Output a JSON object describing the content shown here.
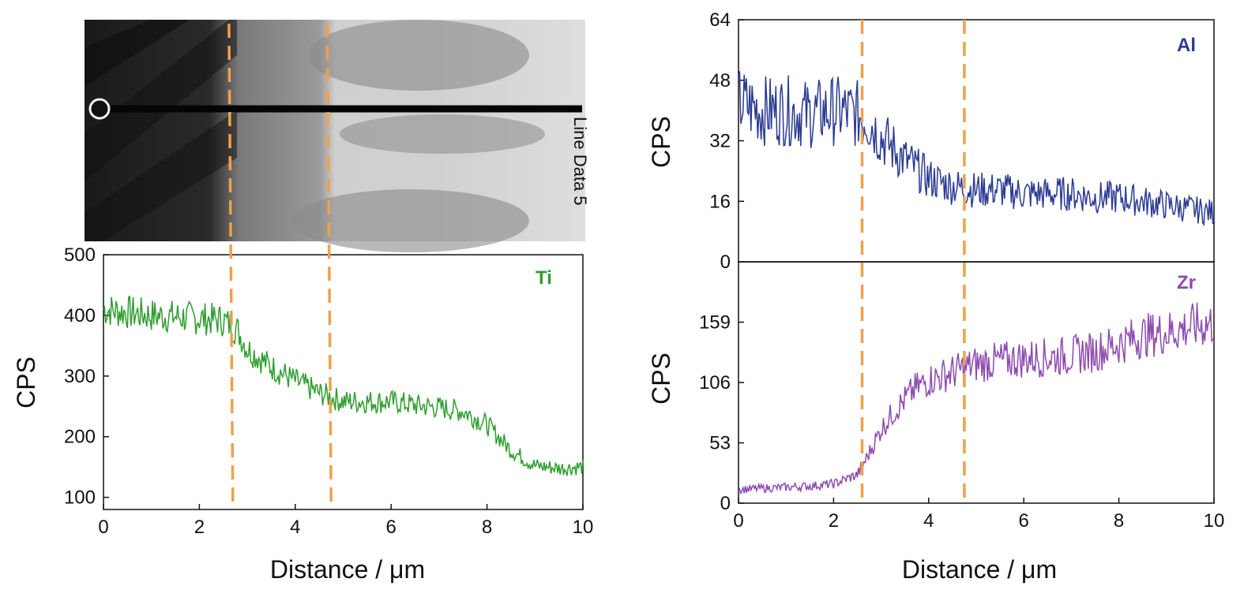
{
  "micrograph": {
    "line_label": "Line Data 5"
  },
  "colors": {
    "Ti": "#2e9e2e",
    "Al": "#2b3b94",
    "Zr": "#8e4bb0",
    "boundary": "#f0a14a"
  },
  "boundaries_um": [
    2.7,
    4.75
  ],
  "boundaries_right_um": [
    2.6,
    4.75
  ],
  "chart_data": [
    {
      "type": "line",
      "panel": "Ti",
      "annotation": "Ti",
      "xlabel": "Distance / μm",
      "ylabel": "CPS",
      "xlim": [
        0,
        10
      ],
      "ylim": [
        80,
        500
      ],
      "xticks": [
        "0",
        "2",
        "4",
        "6",
        "8",
        "10"
      ],
      "yticks": [
        "100",
        "200",
        "300",
        "400",
        "500"
      ],
      "series": [
        {
          "x": [
            0,
            0.5,
            1,
            1.5,
            2,
            2.5,
            2.8,
            3,
            3.5,
            4,
            4.5,
            5,
            5.5,
            6,
            6.5,
            7,
            7.5,
            8,
            8.5,
            9,
            9.5,
            10
          ],
          "y": [
            410,
            405,
            400,
            398,
            395,
            392,
            375,
            345,
            315,
            292,
            272,
            258,
            258,
            258,
            252,
            248,
            242,
            220,
            178,
            152,
            148,
            150
          ]
        }
      ]
    },
    {
      "type": "line",
      "panel": "Al",
      "annotation": "Al",
      "ylabel": "CPS",
      "xlim": [
        0,
        10
      ],
      "ylim": [
        0,
        64
      ],
      "yticks": [
        "0",
        "16",
        "32",
        "48",
        "64"
      ],
      "series": [
        {
          "x": [
            0,
            0.5,
            1,
            1.5,
            2,
            2.5,
            2.7,
            3,
            3.5,
            4,
            4.5,
            5,
            5.5,
            6,
            6.5,
            7,
            7.5,
            8,
            8.5,
            9,
            9.5,
            10
          ],
          "y": [
            42,
            40,
            40,
            39,
            40,
            39,
            38,
            33,
            27,
            22,
            20,
            19,
            19,
            18,
            18,
            18,
            17,
            17,
            16,
            15,
            14,
            13
          ]
        }
      ]
    },
    {
      "type": "line",
      "panel": "Zr",
      "annotation": "Zr",
      "xlabel": "Distance / μm",
      "ylabel": "CPS",
      "xlim": [
        0,
        10
      ],
      "ylim": [
        0,
        212
      ],
      "xticks": [
        "0",
        "2",
        "4",
        "6",
        "8",
        "10"
      ],
      "yticks": [
        "0",
        "53",
        "106",
        "159"
      ],
      "series": [
        {
          "x": [
            0,
            0.5,
            1,
            1.5,
            2,
            2.5,
            2.7,
            3,
            3.3,
            3.7,
            4,
            4.5,
            5,
            5.5,
            6,
            6.5,
            7,
            7.5,
            8,
            8.5,
            9,
            9.5,
            10
          ],
          "y": [
            12,
            13,
            14,
            15,
            17,
            25,
            40,
            65,
            82,
            100,
            108,
            115,
            122,
            125,
            127,
            128,
            130,
            133,
            140,
            147,
            150,
            155,
            158
          ]
        }
      ]
    }
  ]
}
